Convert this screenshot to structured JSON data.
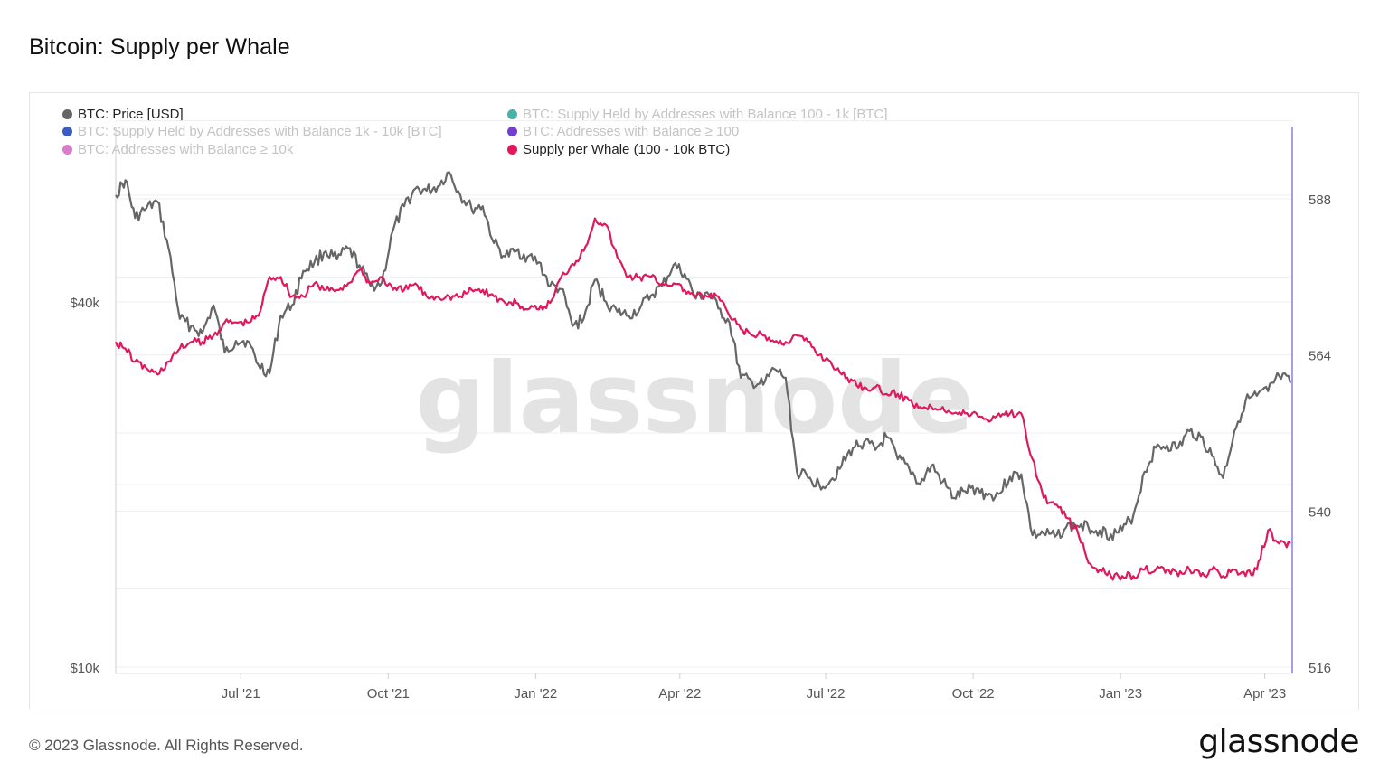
{
  "title": "Bitcoin: Supply per Whale",
  "legend": [
    {
      "label": "BTC: Price [USD]",
      "color": "#666666",
      "active": true
    },
    {
      "label": "BTC: Supply Held by Addresses with Balance 100 - 1k [BTC]",
      "color": "#26a69a",
      "active": false
    },
    {
      "label": "BTC: Supply Held by Addresses with Balance 1k - 10k [BTC]",
      "color": "#1a3fb5",
      "active": false
    },
    {
      "label": "BTC: Addresses with Balance ≥ 100",
      "color": "#5a1fc4",
      "active": false
    },
    {
      "label": "BTC: Addresses with Balance ≥ 10k",
      "color": "#d066c0",
      "active": false
    },
    {
      "label": "Supply per Whale (100 - 10k BTC)",
      "color": "#e0195a",
      "active": true
    }
  ],
  "watermark": "glassnode",
  "footer": {
    "copyright": "© 2023 Glassnode. All Rights Reserved.",
    "logo": "glassnode"
  },
  "colors": {
    "price": "#666666",
    "whale": "#e0195a",
    "grid": "#efefef",
    "cursor": "#a89bf0"
  },
  "chart_data": {
    "type": "line",
    "title": "Bitcoin: Supply per Whale",
    "x_ticks": [
      "Jul '21",
      "Oct '21",
      "Jan '22",
      "Apr '22",
      "Jul '22",
      "Oct '22",
      "Jan '23",
      "Apr '23"
    ],
    "x_range": [
      "2021-04-14",
      "2023-04-17"
    ],
    "y_left": {
      "scale": "log",
      "range": [
        10000,
        80000
      ],
      "ticks": [
        "$10k",
        "$40k"
      ]
    },
    "y_right": {
      "scale": "linear",
      "range": [
        516,
        600
      ],
      "ticks": [
        "516",
        "540",
        "564",
        "588"
      ]
    },
    "grid": true,
    "legend_position": "top-left",
    "series": [
      {
        "name": "BTC: Price [USD]",
        "axis": "left",
        "color": "#666666",
        "x": [
          "2021-04-14",
          "2021-04-20",
          "2021-04-26",
          "2021-05-03",
          "2021-05-10",
          "2021-05-17",
          "2021-05-24",
          "2021-05-31",
          "2021-06-07",
          "2021-06-14",
          "2021-06-21",
          "2021-06-28",
          "2021-07-05",
          "2021-07-12",
          "2021-07-19",
          "2021-07-26",
          "2021-08-02",
          "2021-08-09",
          "2021-08-16",
          "2021-08-23",
          "2021-08-30",
          "2021-09-06",
          "2021-09-13",
          "2021-09-20",
          "2021-09-27",
          "2021-10-04",
          "2021-10-11",
          "2021-10-18",
          "2021-10-25",
          "2021-11-01",
          "2021-11-08",
          "2021-11-15",
          "2021-11-22",
          "2021-11-29",
          "2021-12-06",
          "2021-12-13",
          "2021-12-20",
          "2021-12-27",
          "2022-01-03",
          "2022-01-10",
          "2022-01-17",
          "2022-01-24",
          "2022-01-31",
          "2022-02-07",
          "2022-02-14",
          "2022-02-21",
          "2022-02-28",
          "2022-03-07",
          "2022-03-14",
          "2022-03-21",
          "2022-03-28",
          "2022-04-04",
          "2022-04-11",
          "2022-04-18",
          "2022-04-25",
          "2022-05-02",
          "2022-05-09",
          "2022-05-16",
          "2022-05-23",
          "2022-05-30",
          "2022-06-06",
          "2022-06-13",
          "2022-06-20",
          "2022-06-27",
          "2022-07-04",
          "2022-07-11",
          "2022-07-18",
          "2022-07-25",
          "2022-08-01",
          "2022-08-08",
          "2022-08-15",
          "2022-08-22",
          "2022-08-29",
          "2022-09-05",
          "2022-09-12",
          "2022-09-19",
          "2022-09-26",
          "2022-10-03",
          "2022-10-10",
          "2022-10-17",
          "2022-10-24",
          "2022-10-31",
          "2022-11-07",
          "2022-11-14",
          "2022-11-21",
          "2022-11-28",
          "2022-12-05",
          "2022-12-12",
          "2022-12-19",
          "2022-12-26",
          "2023-01-02",
          "2023-01-09",
          "2023-01-16",
          "2023-01-23",
          "2023-01-30",
          "2023-02-06",
          "2023-02-13",
          "2023-02-20",
          "2023-02-27",
          "2023-03-06",
          "2023-03-13",
          "2023-03-20",
          "2023-03-27",
          "2023-04-03",
          "2023-04-10",
          "2023-04-17"
        ],
        "values": [
          60000,
          63500,
          55000,
          57000,
          58500,
          49000,
          37500,
          36500,
          35500,
          39500,
          33000,
          34500,
          34500,
          31500,
          30500,
          38000,
          39500,
          45000,
          46500,
          48500,
          47000,
          49000,
          46000,
          42500,
          43000,
          52500,
          57500,
          61500,
          61000,
          62000,
          65500,
          60000,
          57000,
          57500,
          50000,
          47500,
          48500,
          47500,
          46500,
          42500,
          42000,
          36500,
          37500,
          43500,
          40000,
          38500,
          38000,
          39000,
          41000,
          42500,
          46000,
          44500,
          40500,
          41500,
          39000,
          37000,
          30000,
          29500,
          29200,
          31000,
          30000,
          21000,
          20500,
          20000,
          20300,
          21500,
          23000,
          23500,
          22800,
          24000,
          22000,
          21300,
          20000,
          21500,
          20200,
          19000,
          19500,
          19700,
          19200,
          19300,
          20600,
          20800,
          16500,
          16600,
          16400,
          17000,
          17100,
          17000,
          16800,
          16550,
          16800,
          17800,
          21000,
          23000,
          23200,
          23000,
          24500,
          24000,
          22300,
          20500,
          24500,
          27500,
          28000,
          28500,
          30200,
          29400
        ]
      },
      {
        "name": "Supply per Whale (100 - 10k BTC)",
        "axis": "right",
        "color": "#e0195a",
        "x": [
          "2021-04-14",
          "2021-04-20",
          "2021-04-26",
          "2021-05-03",
          "2021-05-10",
          "2021-05-17",
          "2021-05-24",
          "2021-05-31",
          "2021-06-07",
          "2021-06-14",
          "2021-06-21",
          "2021-06-28",
          "2021-07-05",
          "2021-07-12",
          "2021-07-19",
          "2021-07-26",
          "2021-08-02",
          "2021-08-09",
          "2021-08-16",
          "2021-08-23",
          "2021-08-30",
          "2021-09-06",
          "2021-09-13",
          "2021-09-20",
          "2021-09-27",
          "2021-10-04",
          "2021-10-11",
          "2021-10-18",
          "2021-10-25",
          "2021-11-01",
          "2021-11-08",
          "2021-11-15",
          "2021-11-22",
          "2021-11-29",
          "2021-12-06",
          "2021-12-13",
          "2021-12-20",
          "2021-12-27",
          "2022-01-03",
          "2022-01-10",
          "2022-01-17",
          "2022-01-24",
          "2022-01-31",
          "2022-02-07",
          "2022-02-14",
          "2022-02-21",
          "2022-02-28",
          "2022-03-07",
          "2022-03-14",
          "2022-03-21",
          "2022-03-28",
          "2022-04-04",
          "2022-04-11",
          "2022-04-18",
          "2022-04-25",
          "2022-05-02",
          "2022-05-09",
          "2022-05-16",
          "2022-05-23",
          "2022-05-30",
          "2022-06-06",
          "2022-06-13",
          "2022-06-20",
          "2022-06-27",
          "2022-07-04",
          "2022-07-11",
          "2022-07-18",
          "2022-07-25",
          "2022-08-01",
          "2022-08-08",
          "2022-08-15",
          "2022-08-22",
          "2022-08-29",
          "2022-09-05",
          "2022-09-12",
          "2022-09-19",
          "2022-09-26",
          "2022-10-03",
          "2022-10-10",
          "2022-10-17",
          "2022-10-24",
          "2022-10-31",
          "2022-11-07",
          "2022-11-14",
          "2022-11-21",
          "2022-11-28",
          "2022-12-05",
          "2022-12-12",
          "2022-12-19",
          "2022-12-26",
          "2023-01-02",
          "2023-01-09",
          "2023-01-16",
          "2023-01-23",
          "2023-01-30",
          "2023-02-06",
          "2023-02-13",
          "2023-02-20",
          "2023-02-27",
          "2023-03-06",
          "2023-03-13",
          "2023-03-20",
          "2023-03-27",
          "2023-04-03",
          "2023-04-10",
          "2023-04-17"
        ],
        "values": [
          566,
          565,
          563,
          562,
          561,
          563,
          565,
          566,
          566,
          567,
          569,
          569,
          569,
          570,
          576,
          576,
          573,
          573,
          575,
          574,
          574,
          575,
          577,
          575,
          576,
          574,
          574,
          575,
          573,
          573,
          573,
          573,
          574,
          574,
          573,
          572,
          572,
          571,
          571,
          572,
          576,
          578,
          580,
          585,
          584,
          579,
          576,
          576,
          576,
          575,
          575,
          574,
          573,
          573,
          573,
          570,
          568,
          567,
          567,
          566,
          566,
          567,
          566,
          564,
          563,
          561,
          560,
          559,
          559,
          558,
          558,
          557,
          556,
          556,
          556,
          555,
          555,
          555,
          554,
          555,
          555,
          555,
          548,
          542,
          541,
          539,
          537,
          532,
          531,
          530,
          530,
          530,
          531,
          531,
          531,
          530,
          531,
          530,
          531,
          530,
          531,
          530,
          531,
          537,
          535,
          535
        ]
      }
    ]
  }
}
